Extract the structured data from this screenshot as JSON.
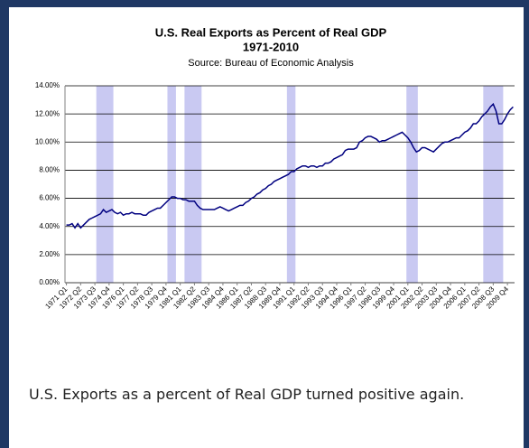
{
  "chart_data": {
    "type": "line",
    "title": "U.S. Real Exports as Percent of Real GDP",
    "subtitle": "1971-2010",
    "source": "Source: Bureau of Economic Analysis",
    "categories": [
      "1971 Q1",
      null,
      null,
      null,
      null,
      "1972 Q2",
      null,
      null,
      null,
      null,
      "1973 Q3",
      null,
      null,
      null,
      null,
      "1974 Q4",
      null,
      null,
      null,
      null,
      "1976 Q1",
      null,
      null,
      null,
      null,
      "1977 Q2",
      null,
      null,
      null,
      null,
      "1978 Q3",
      null,
      null,
      null,
      null,
      "1979 Q4",
      null,
      null,
      null,
      null,
      "1981 Q1",
      null,
      null,
      null,
      null,
      "1982 Q2",
      null,
      null,
      null,
      null,
      "1983 Q3",
      null,
      null,
      null,
      null,
      "1984 Q4",
      null,
      null,
      null,
      null,
      "1986 Q1",
      null,
      null,
      null,
      null,
      "1987 Q2",
      null,
      null,
      null,
      null,
      "1988 Q3",
      null,
      null,
      null,
      null,
      "1989 Q4",
      null,
      null,
      null,
      null,
      "1991 Q1",
      null,
      null,
      null,
      null,
      "1992 Q2",
      null,
      null,
      null,
      null,
      "1993 Q3",
      null,
      null,
      null,
      null,
      "1994 Q4",
      null,
      null,
      null,
      null,
      "1996 Q1",
      null,
      null,
      null,
      null,
      "1997 Q2",
      null,
      null,
      null,
      null,
      "1998 Q3",
      null,
      null,
      null,
      null,
      "1999 Q4",
      null,
      null,
      null,
      null,
      "2001 Q1",
      null,
      null,
      null,
      null,
      "2002 Q2",
      null,
      null,
      null,
      null,
      "2003 Q3",
      null,
      null,
      null,
      null,
      "2004 Q4",
      null,
      null,
      null,
      null,
      "2006 Q1",
      null,
      null,
      null,
      null,
      "2007 Q2",
      null,
      null,
      null,
      null,
      "2008 Q3",
      null,
      null,
      null,
      null,
      "2009 Q4",
      null,
      null
    ],
    "series": [
      {
        "color": "#000080",
        "values": [
          4.1,
          4.1,
          4.2,
          3.9,
          4.2,
          3.9,
          4.1,
          4.3,
          4.5,
          4.6,
          4.7,
          4.8,
          4.9,
          5.2,
          5.0,
          5.1,
          5.2,
          5.0,
          4.9,
          5.0,
          4.8,
          4.9,
          4.9,
          5.0,
          4.9,
          4.9,
          4.9,
          4.8,
          4.8,
          5.0,
          5.1,
          5.2,
          5.3,
          5.3,
          5.5,
          5.7,
          5.9,
          6.1,
          6.1,
          6.0,
          6.0,
          5.9,
          5.9,
          5.8,
          5.8,
          5.8,
          5.5,
          5.3,
          5.2,
          5.2,
          5.2,
          5.2,
          5.2,
          5.3,
          5.4,
          5.3,
          5.2,
          5.1,
          5.2,
          5.3,
          5.4,
          5.5,
          5.5,
          5.7,
          5.8,
          6.0,
          6.1,
          6.3,
          6.4,
          6.6,
          6.7,
          6.9,
          7.0,
          7.2,
          7.3,
          7.4,
          7.5,
          7.6,
          7.7,
          7.9,
          7.9,
          8.1,
          8.2,
          8.3,
          8.3,
          8.2,
          8.3,
          8.3,
          8.2,
          8.3,
          8.3,
          8.5,
          8.5,
          8.6,
          8.8,
          8.9,
          9.0,
          9.1,
          9.4,
          9.5,
          9.5,
          9.5,
          9.6,
          10.0,
          10.1,
          10.3,
          10.4,
          10.4,
          10.3,
          10.2,
          10.0,
          10.1,
          10.1,
          10.2,
          10.3,
          10.4,
          10.5,
          10.6,
          10.7,
          10.5,
          10.3,
          10.0,
          9.6,
          9.3,
          9.4,
          9.6,
          9.6,
          9.5,
          9.4,
          9.3,
          9.5,
          9.7,
          9.9,
          10.0,
          10.0,
          10.1,
          10.2,
          10.3,
          10.3,
          10.5,
          10.7,
          10.8,
          11.0,
          11.3,
          11.3,
          11.5,
          11.8,
          12.0,
          12.2,
          12.5,
          12.7,
          12.2,
          11.3,
          11.3,
          11.6,
          12.0,
          12.3,
          12.5
        ]
      }
    ],
    "recessions": [
      {
        "start": 11,
        "end": 16
      },
      {
        "start": 36,
        "end": 38
      },
      {
        "start": 42,
        "end": 47
      },
      {
        "start": 78,
        "end": 80
      },
      {
        "start": 120,
        "end": 123
      },
      {
        "start": 147,
        "end": 153
      }
    ],
    "recession_color": "#c9c9f2",
    "ylim": [
      0,
      14
    ],
    "yticks": [
      {
        "value": 0,
        "label": "0.00%"
      },
      {
        "value": 2,
        "label": "2.00%"
      },
      {
        "value": 4,
        "label": "4.00%"
      },
      {
        "value": 6,
        "label": "6.00%"
      },
      {
        "value": 8,
        "label": "8.00%"
      },
      {
        "value": 10,
        "label": "10.00%"
      },
      {
        "value": 12,
        "label": "12.00%"
      },
      {
        "value": 14,
        "label": "14.00%"
      }
    ],
    "grid": true
  },
  "caption": "U.S. Exports as a percent of Real GDP turned positive again."
}
